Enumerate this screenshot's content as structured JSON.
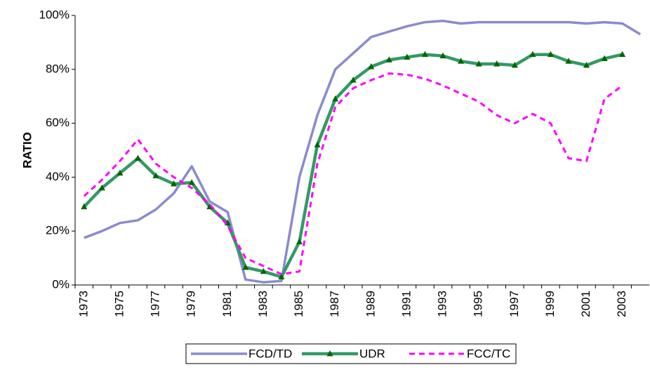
{
  "chart_data": {
    "type": "line",
    "ylabel": "RATIO",
    "categories": [
      "1973",
      null,
      "1975",
      null,
      "1977",
      null,
      "1979",
      null,
      "1981",
      null,
      "1983",
      null,
      "1985",
      null,
      "1987",
      null,
      "1989",
      null,
      "1991",
      null,
      "1993",
      null,
      "1995",
      null,
      "1997",
      null,
      "1999",
      null,
      "2001",
      null,
      "2003",
      null
    ],
    "series": [
      {
        "name": "FCD/TD",
        "color": "#8a8ad0",
        "values": [
          17.5,
          20,
          23,
          24,
          28,
          34,
          44,
          31,
          27,
          2,
          1,
          1.5,
          40,
          63,
          80,
          86,
          92,
          94,
          96,
          97.5,
          98,
          97,
          97.5,
          97.5,
          97.5,
          97.5,
          97.5,
          97.5,
          97,
          97.5,
          97,
          93
        ]
      },
      {
        "name": "UDR",
        "color": "#339966",
        "marker_color": "#006600",
        "values": [
          29,
          36,
          41.5,
          47,
          40.5,
          37.5,
          38,
          29,
          23,
          6.5,
          5,
          3,
          16,
          52,
          69,
          76,
          81,
          83.5,
          84.5,
          85.5,
          85,
          83,
          82,
          82,
          81.5,
          85.5,
          85.5,
          83,
          81.5,
          84,
          85.5,
          null
        ]
      },
      {
        "name": "FCC/TC",
        "color": "#ff00ff",
        "values": [
          33,
          39,
          46,
          54,
          45,
          40,
          36,
          30,
          22,
          10,
          7,
          4,
          5,
          45,
          66,
          73,
          76,
          78.5,
          78,
          76.5,
          74,
          71,
          68,
          63,
          60,
          63.5,
          60,
          47,
          46,
          69,
          74,
          null
        ]
      }
    ],
    "ylim": [
      0,
      100
    ],
    "yticks": [
      {
        "value": 0,
        "label": "0%"
      },
      {
        "value": 20,
        "label": "20%"
      },
      {
        "value": 40,
        "label": "40%"
      },
      {
        "value": 60,
        "label": "60%"
      },
      {
        "value": 80,
        "label": "80%"
      },
      {
        "value": 100,
        "label": "100%"
      }
    ],
    "legend": "bottom"
  }
}
